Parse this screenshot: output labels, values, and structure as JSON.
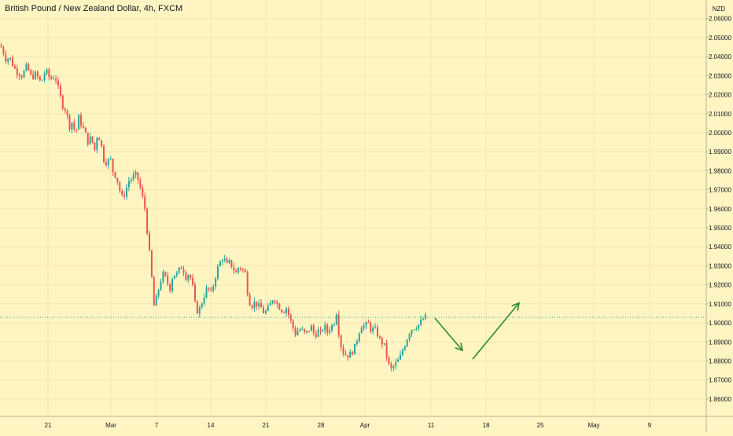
{
  "chart_data": {
    "type": "candlestick",
    "title": "British Pound / New Zealand Dollar, 4h, FXCM",
    "currency": "NZD",
    "ylim": [
      1.855,
      2.0665
    ],
    "y_ticks": [
      "2.06000",
      "2.05000",
      "2.04000",
      "2.03000",
      "2.02000",
      "2.01000",
      "2.00000",
      "1.99000",
      "1.98000",
      "1.97000",
      "1.96000",
      "1.95000",
      "1.94000",
      "1.93000",
      "1.92000",
      "1.91000",
      "1.90000",
      "1.89000",
      "1.88000",
      "1.87000",
      "1.86000"
    ],
    "x_ticks": [
      "21",
      "Mar",
      "7",
      "14",
      "21",
      "28",
      "Apr",
      "11",
      "18",
      "25",
      "May",
      "9"
    ],
    "last_price": "1.90290",
    "colors": {
      "background": "#fff5c2",
      "up": "#26a69a",
      "down": "#ef5350",
      "arrow": "#2e8b2e",
      "grid": "#f1e6b2",
      "axis_text": "#131722",
      "price_label_bg": "#26a69a"
    },
    "price_path": [
      [
        0,
        2.046
      ],
      [
        3,
        2.044
      ],
      [
        8,
        2.038
      ],
      [
        12,
        2.04
      ],
      [
        18,
        2.034
      ],
      [
        22,
        2.032
      ],
      [
        28,
        2.03
      ],
      [
        34,
        2.035
      ],
      [
        40,
        2.029
      ],
      [
        46,
        2.031
      ],
      [
        52,
        2.026
      ],
      [
        58,
        2.033
      ],
      [
        64,
        2.028
      ],
      [
        70,
        2.03
      ],
      [
        76,
        2.02
      ],
      [
        80,
        2.014
      ],
      [
        84,
        2.012
      ],
      [
        88,
        2.003
      ],
      [
        92,
        2.006
      ],
      [
        96,
        1.999
      ],
      [
        100,
        2.008
      ],
      [
        104,
        2.004
      ],
      [
        108,
        2.0
      ],
      [
        112,
        1.995
      ],
      [
        116,
        1.998
      ],
      [
        120,
        1.99
      ],
      [
        124,
        2.0
      ],
      [
        128,
        1.995
      ],
      [
        132,
        1.986
      ],
      [
        136,
        1.984
      ],
      [
        140,
        1.987
      ],
      [
        144,
        1.979
      ],
      [
        148,
        1.977
      ],
      [
        152,
        1.97
      ],
      [
        156,
        1.965
      ],
      [
        160,
        1.97
      ],
      [
        164,
        1.975
      ],
      [
        168,
        1.976
      ],
      [
        172,
        1.978
      ],
      [
        176,
        1.975
      ],
      [
        180,
        1.968
      ],
      [
        184,
        1.961
      ],
      [
        188,
        1.945
      ],
      [
        192,
        1.928
      ],
      [
        196,
        1.908
      ],
      [
        200,
        1.915
      ],
      [
        204,
        1.922
      ],
      [
        208,
        1.926
      ],
      [
        212,
        1.922
      ],
      [
        216,
        1.918
      ],
      [
        220,
        1.926
      ],
      [
        224,
        1.925
      ],
      [
        228,
        1.928
      ],
      [
        232,
        1.93
      ],
      [
        236,
        1.924
      ],
      [
        240,
        1.926
      ],
      [
        244,
        1.922
      ],
      [
        248,
        1.91
      ],
      [
        252,
        1.905
      ],
      [
        256,
        1.91
      ],
      [
        260,
        1.915
      ],
      [
        264,
        1.919
      ],
      [
        268,
        1.915
      ],
      [
        272,
        1.921
      ],
      [
        276,
        1.928
      ],
      [
        280,
        1.932
      ],
      [
        284,
        1.935
      ],
      [
        288,
        1.93
      ],
      [
        292,
        1.932
      ],
      [
        296,
        1.929
      ],
      [
        300,
        1.926
      ],
      [
        304,
        1.93
      ],
      [
        308,
        1.928
      ],
      [
        312,
        1.926
      ],
      [
        316,
        1.912
      ],
      [
        320,
        1.909
      ],
      [
        324,
        1.911
      ],
      [
        328,
        1.909
      ],
      [
        332,
        1.908
      ],
      [
        336,
        1.905
      ],
      [
        340,
        1.907
      ],
      [
        344,
        1.91
      ],
      [
        348,
        1.914
      ],
      [
        352,
        1.91
      ],
      [
        356,
        1.908
      ],
      [
        360,
        1.906
      ],
      [
        364,
        1.908
      ],
      [
        368,
        1.903
      ],
      [
        372,
        1.898
      ],
      [
        376,
        1.894
      ],
      [
        380,
        1.897
      ],
      [
        384,
        1.896
      ],
      [
        388,
        1.894
      ],
      [
        392,
        1.896
      ],
      [
        396,
        1.898
      ],
      [
        400,
        1.893
      ],
      [
        404,
        1.896
      ],
      [
        408,
        1.894
      ],
      [
        412,
        1.899
      ],
      [
        416,
        1.895
      ],
      [
        420,
        1.898
      ],
      [
        424,
        1.899
      ],
      [
        428,
        1.906
      ],
      [
        432,
        1.89
      ],
      [
        436,
        1.885
      ],
      [
        440,
        1.883
      ],
      [
        444,
        1.883
      ],
      [
        448,
        1.885
      ],
      [
        452,
        1.888
      ],
      [
        456,
        1.895
      ],
      [
        460,
        1.899
      ],
      [
        464,
        1.898
      ],
      [
        468,
        1.9
      ],
      [
        472,
        1.896
      ],
      [
        476,
        1.897
      ],
      [
        480,
        1.894
      ],
      [
        484,
        1.89
      ],
      [
        488,
        1.889
      ],
      [
        492,
        1.882
      ],
      [
        496,
        1.875
      ],
      [
        500,
        1.877
      ],
      [
        504,
        1.879
      ],
      [
        508,
        1.881
      ],
      [
        512,
        1.886
      ],
      [
        516,
        1.89
      ],
      [
        520,
        1.895
      ],
      [
        524,
        1.897
      ],
      [
        528,
        1.898
      ],
      [
        532,
        1.899
      ],
      [
        536,
        1.901
      ],
      [
        540,
        1.903
      ],
      [
        543,
        1.9029
      ]
    ],
    "arrows": [
      {
        "from": [
          553,
          1.9025
        ],
        "to": [
          588,
          1.8855
        ]
      },
      {
        "from": [
          601,
          1.881
        ],
        "to": [
          660,
          1.9105
        ]
      }
    ]
  }
}
